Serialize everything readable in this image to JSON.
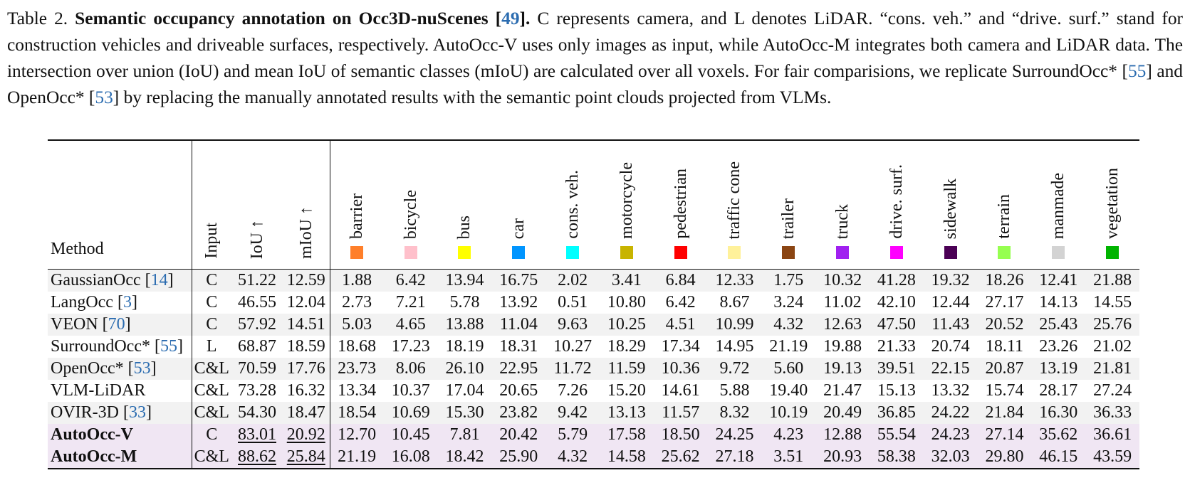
{
  "caption": {
    "label": "Table 2.",
    "title_pre": "Semantic occupancy annotation on Occ3D-nuScenes [",
    "title_cite": "49",
    "title_post": "].",
    "text1": "C represents camera, and L denotes LiDAR. “cons. veh.” and “drive. surf.” stand for construction vehicles and driveable surfaces, respectively. AutoOcc-V uses only images as input, while AutoOcc-M integrates both camera and LiDAR data. The intersection over union (IoU) and mean IoU of semantic classes (mIoU) are calculated over all voxels. For fair comparisions, we replicate SurroundOcc* [",
    "cite1": "55",
    "text2": "] and OpenOcc* [",
    "cite2": "53",
    "text3": "] by replacing the manually annotated results with the semantic point clouds projected from VLMs."
  },
  "headers": {
    "method": "Method",
    "input": "Input",
    "iou": "IoU ↑",
    "miou": "mIoU ↑"
  },
  "classes": [
    {
      "name": "barrier",
      "color": "#ff7f2a"
    },
    {
      "name": "bicycle",
      "color": "#ffc0cb"
    },
    {
      "name": "bus",
      "color": "#ffff00"
    },
    {
      "name": "car",
      "color": "#0095ff"
    },
    {
      "name": "cons. veh.",
      "color": "#00ffff"
    },
    {
      "name": "motorcycle",
      "color": "#c8b400"
    },
    {
      "name": "pedestrian",
      "color": "#ff0000"
    },
    {
      "name": "traffic cone",
      "color": "#fff19a"
    },
    {
      "name": "trailer",
      "color": "#8b4513"
    },
    {
      "name": "truck",
      "color": "#a020f0"
    },
    {
      "name": "drive. surf.",
      "color": "#ff00ff"
    },
    {
      "name": "sidewalk",
      "color": "#4b0055"
    },
    {
      "name": "terrain",
      "color": "#96ff50"
    },
    {
      "name": "manmade",
      "color": "#d3d3d3"
    },
    {
      "name": "vegetation",
      "color": "#00b400"
    }
  ],
  "rows": [
    {
      "method": "GaussianOcc [",
      "cite": "14",
      "input": "C",
      "iou": "51.22",
      "miou": "12.59",
      "values": [
        "1.88",
        "6.42",
        "13.94",
        "16.75",
        "2.02",
        "3.41",
        "6.84",
        "12.33",
        "1.75",
        "10.32",
        "41.28",
        "19.32",
        "18.26",
        "12.41",
        "21.88"
      ]
    },
    {
      "method": "LangOcc [",
      "cite": "3",
      "input": "C",
      "iou": "46.55",
      "miou": "12.04",
      "values": [
        "2.73",
        "7.21",
        "5.78",
        "13.92",
        "0.51",
        "10.80",
        "6.42",
        "8.67",
        "3.24",
        "11.02",
        "42.10",
        "12.44",
        "27.17",
        "14.13",
        "14.55"
      ]
    },
    {
      "method": "VEON [",
      "cite": "70",
      "input": "C",
      "iou": "57.92",
      "miou": "14.51",
      "values": [
        "5.03",
        "4.65",
        "13.88",
        "11.04",
        "9.63",
        "10.25",
        "4.51",
        "10.99",
        "4.32",
        "12.63",
        "47.50",
        "11.43",
        "20.52",
        "25.43",
        "25.76"
      ]
    },
    {
      "method": "SurroundOcc* [",
      "cite": "55",
      "input": "L",
      "iou": "68.87",
      "miou": "18.59",
      "values": [
        "18.68",
        "17.23",
        "18.19",
        "18.31",
        "10.27",
        "18.29",
        "17.34",
        "14.95",
        "21.19",
        "19.88",
        "21.33",
        "20.74",
        "18.11",
        "23.26",
        "21.02"
      ]
    },
    {
      "method": "OpenOcc* [",
      "cite": "53",
      "input": "C&L",
      "iou": "70.59",
      "miou": "17.76",
      "values": [
        "23.73",
        "8.06",
        "26.10",
        "22.95",
        "11.72",
        "11.59",
        "10.36",
        "9.72",
        "5.60",
        "19.13",
        "39.51",
        "22.15",
        "20.87",
        "13.19",
        "21.81"
      ]
    },
    {
      "method": "VLM-LiDAR",
      "cite": "",
      "input": "C&L",
      "iou": "73.28",
      "miou": "16.32",
      "values": [
        "13.34",
        "10.37",
        "17.04",
        "20.65",
        "7.26",
        "15.20",
        "14.61",
        "5.88",
        "19.40",
        "21.47",
        "15.13",
        "13.32",
        "15.74",
        "28.17",
        "27.24"
      ]
    },
    {
      "method": "OVIR-3D [",
      "cite": "33",
      "input": "C&L",
      "iou": "54.30",
      "miou": "18.47",
      "values": [
        "18.54",
        "10.69",
        "15.30",
        "23.82",
        "9.42",
        "13.13",
        "11.57",
        "8.32",
        "10.19",
        "20.49",
        "36.85",
        "24.22",
        "21.84",
        "16.30",
        "36.33"
      ]
    },
    {
      "method": "AutoOcc-V",
      "cite": "",
      "input": "C",
      "iou": "83.01",
      "miou": "20.92",
      "values": [
        "12.70",
        "10.45",
        "7.81",
        "20.42",
        "5.79",
        "17.58",
        "18.50",
        "24.25",
        "4.23",
        "12.88",
        "55.54",
        "24.23",
        "27.14",
        "35.62",
        "36.61"
      ]
    },
    {
      "method": "AutoOcc-M",
      "cite": "",
      "input": "C&L",
      "iou": "88.62",
      "miou": "25.84",
      "values": [
        "21.19",
        "16.08",
        "18.42",
        "25.90",
        "4.32",
        "14.58",
        "25.62",
        "27.18",
        "3.51",
        "20.93",
        "58.38",
        "32.03",
        "29.80",
        "46.15",
        "43.59"
      ]
    }
  ]
}
